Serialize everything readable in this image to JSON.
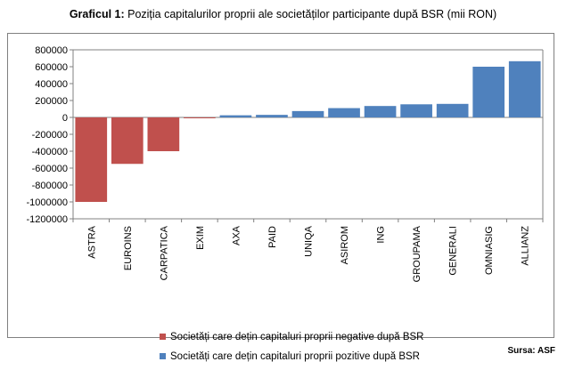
{
  "title_bold": "Graficul 1:",
  "title_rest": " Poziția capitalurilor proprii ale societăților participante după BSR (mii RON)",
  "source": "Sursa: ASF",
  "colors": {
    "negative": "#C0504D",
    "positive": "#4F81BD",
    "axis": "#808080",
    "grid": "#d9d9d9"
  },
  "chart_data": {
    "type": "bar",
    "title": "Poziția capitalurilor proprii ale societăților participante după BSR (mii RON)",
    "categories": [
      "ASTRA",
      "EUROINS",
      "CARPATICA",
      "EXIM",
      "AXA",
      "PAID",
      "UNIQA",
      "ASIROM",
      "ING",
      "GROUPAMA",
      "GENERALI",
      "OMNIASIG",
      "ALLIANZ"
    ],
    "series": [
      {
        "name": "Societăți care dețin capitaluri proprii negative după BSR",
        "values": [
          -1000000,
          -550000,
          -400000,
          -5000,
          null,
          null,
          null,
          null,
          null,
          null,
          null,
          null,
          null
        ]
      },
      {
        "name": "Societăți care dețin capitaluri proprii  pozitive după BSR",
        "values": [
          null,
          null,
          null,
          null,
          25000,
          30000,
          75000,
          110000,
          135000,
          155000,
          160000,
          600000,
          665000
        ]
      }
    ],
    "yticks": [
      800000,
      600000,
      400000,
      200000,
      0,
      -200000,
      -400000,
      -600000,
      -800000,
      -1000000,
      -1200000
    ],
    "ylim": [
      -1200000,
      800000
    ],
    "grid": false,
    "legend": "bottom"
  }
}
